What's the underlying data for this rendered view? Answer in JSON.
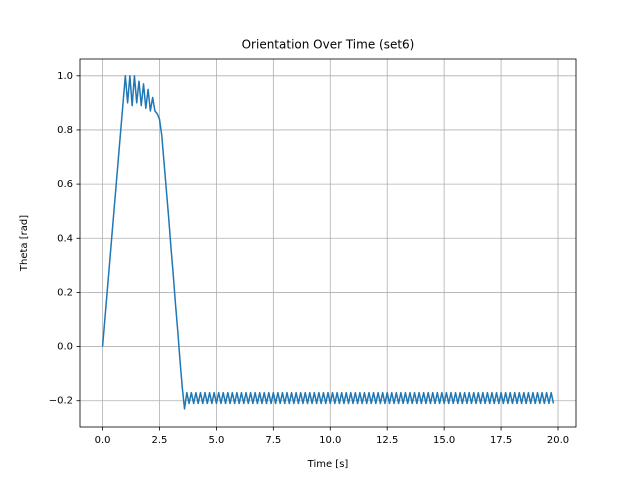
{
  "chart_data": {
    "type": "line",
    "title": "Orientation Over Time (set6)",
    "x_label": "Time [s]",
    "y_label": "Theta [rad]",
    "grid": true,
    "xlim": [
      -0.99,
      20.79
    ],
    "ylim": [
      -0.297,
      1.062
    ],
    "xticks": [
      {
        "value": 0,
        "label": "0.0"
      },
      {
        "value": 2.5,
        "label": "2.5"
      },
      {
        "value": 5,
        "label": "5.0"
      },
      {
        "value": 7.5,
        "label": "7.5"
      },
      {
        "value": 10,
        "label": "10.0"
      },
      {
        "value": 12.5,
        "label": "12.5"
      },
      {
        "value": 15,
        "label": "15.0"
      },
      {
        "value": 17.5,
        "label": "17.5"
      },
      {
        "value": 20,
        "label": "20.0"
      }
    ],
    "yticks": [
      {
        "value": -0.2,
        "label": "−0.2"
      },
      {
        "value": 0,
        "label": "0.0"
      },
      {
        "value": 0.2,
        "label": "0.2"
      },
      {
        "value": 0.4,
        "label": "0.4"
      },
      {
        "value": 0.6,
        "label": "0.6"
      },
      {
        "value": 0.8,
        "label": "0.8"
      },
      {
        "value": 1.0,
        "label": "1.0"
      }
    ],
    "x": [
      0,
      0.1,
      0.2,
      0.3,
      0.4,
      0.5,
      0.6,
      0.7,
      0.8,
      0.9,
      1.0,
      1.1,
      1.2,
      1.3,
      1.4,
      1.5,
      1.6,
      1.7,
      1.8,
      1.9,
      2.0,
      2.1,
      2.2,
      2.3,
      2.4,
      2.5,
      2.6,
      2.7,
      2.8,
      2.9,
      3.0,
      3.1,
      3.2,
      3.3,
      3.4,
      3.5,
      3.6,
      3.7,
      3.8,
      3.9,
      4.0,
      4.1,
      4.2,
      4.3,
      4.4,
      4.5,
      4.6,
      4.7,
      4.8,
      4.9,
      5.0,
      5.1,
      5.2,
      5.3,
      5.4,
      5.5,
      5.6,
      5.7,
      5.8,
      5.9,
      6.0,
      6.1,
      6.2,
      6.3,
      6.4,
      6.5,
      6.6,
      6.7,
      6.8,
      6.9,
      7.0,
      7.1,
      7.2,
      7.3,
      7.4,
      7.5,
      7.6,
      7.7,
      7.8,
      7.9,
      8.0,
      8.1,
      8.2,
      8.3,
      8.4,
      8.5,
      8.6,
      8.7,
      8.8,
      8.9,
      9.0,
      9.1,
      9.2,
      9.3,
      9.4,
      9.5,
      9.6,
      9.7,
      9.8,
      9.9,
      10.0,
      10.1,
      10.2,
      10.3,
      10.4,
      10.5,
      10.6,
      10.7,
      10.8,
      10.9,
      11.0,
      11.1,
      11.2,
      11.3,
      11.4,
      11.5,
      11.6,
      11.7,
      11.8,
      11.9,
      12.0,
      12.1,
      12.2,
      12.3,
      12.4,
      12.5,
      12.6,
      12.7,
      12.8,
      12.9,
      13.0,
      13.1,
      13.2,
      13.3,
      13.4,
      13.5,
      13.6,
      13.7,
      13.8,
      13.9,
      14.0,
      14.1,
      14.2,
      14.3,
      14.4,
      14.5,
      14.6,
      14.7,
      14.8,
      14.9,
      15.0,
      15.1,
      15.2,
      15.3,
      15.4,
      15.5,
      15.6,
      15.7,
      15.8,
      15.9,
      16.0,
      16.1,
      16.2,
      16.3,
      16.4,
      16.5,
      16.6,
      16.7,
      16.8,
      16.9,
      17.0,
      17.1,
      17.2,
      17.3,
      17.4,
      17.5,
      17.6,
      17.7,
      17.8,
      17.9,
      18.0,
      18.1,
      18.2,
      18.3,
      18.4,
      18.5,
      18.6,
      18.7,
      18.8,
      18.9,
      19.0,
      19.1,
      19.2,
      19.3,
      19.4,
      19.5,
      19.6,
      19.7,
      19.8
    ],
    "series": [
      {
        "color": "#1f77b4",
        "values": [
          0,
          0.1,
          0.2,
          0.3,
          0.4,
          0.5,
          0.6,
          0.7,
          0.8,
          0.9,
          1.0,
          0.9,
          1.0,
          0.89,
          1.0,
          0.9,
          0.98,
          0.89,
          0.97,
          0.88,
          0.95,
          0.87,
          0.92,
          0.87,
          0.86,
          0.84,
          0.78,
          0.68,
          0.58,
          0.48,
          0.37,
          0.27,
          0.16,
          0.06,
          -0.05,
          -0.15,
          -0.23,
          -0.17,
          -0.21,
          -0.17,
          -0.21,
          -0.17,
          -0.21,
          -0.17,
          -0.21,
          -0.17,
          -0.21,
          -0.17,
          -0.21,
          -0.17,
          -0.21,
          -0.17,
          -0.21,
          -0.17,
          -0.21,
          -0.17,
          -0.21,
          -0.17,
          -0.21,
          -0.17,
          -0.21,
          -0.17,
          -0.21,
          -0.17,
          -0.21,
          -0.17,
          -0.21,
          -0.17,
          -0.21,
          -0.17,
          -0.21,
          -0.17,
          -0.21,
          -0.17,
          -0.21,
          -0.17,
          -0.21,
          -0.17,
          -0.21,
          -0.17,
          -0.21,
          -0.17,
          -0.21,
          -0.17,
          -0.21,
          -0.17,
          -0.21,
          -0.17,
          -0.21,
          -0.17,
          -0.21,
          -0.17,
          -0.21,
          -0.17,
          -0.21,
          -0.17,
          -0.21,
          -0.17,
          -0.21,
          -0.17,
          -0.21,
          -0.17,
          -0.21,
          -0.17,
          -0.21,
          -0.17,
          -0.21,
          -0.17,
          -0.21,
          -0.17,
          -0.21,
          -0.17,
          -0.21,
          -0.17,
          -0.21,
          -0.17,
          -0.21,
          -0.17,
          -0.21,
          -0.17,
          -0.21,
          -0.17,
          -0.21,
          -0.17,
          -0.21,
          -0.17,
          -0.21,
          -0.17,
          -0.21,
          -0.17,
          -0.21,
          -0.17,
          -0.21,
          -0.17,
          -0.21,
          -0.17,
          -0.21,
          -0.17,
          -0.21,
          -0.17,
          -0.21,
          -0.17,
          -0.21,
          -0.17,
          -0.21,
          -0.17,
          -0.21,
          -0.17,
          -0.21,
          -0.17,
          -0.21,
          -0.17,
          -0.21,
          -0.17,
          -0.21,
          -0.17,
          -0.21,
          -0.17,
          -0.21,
          -0.17,
          -0.21,
          -0.17,
          -0.21,
          -0.17,
          -0.21,
          -0.17,
          -0.21,
          -0.17,
          -0.21,
          -0.17,
          -0.21,
          -0.17,
          -0.21,
          -0.17,
          -0.21,
          -0.17,
          -0.21,
          -0.17,
          -0.21,
          -0.17,
          -0.21,
          -0.17,
          -0.21,
          -0.17,
          -0.21,
          -0.17,
          -0.21,
          -0.17,
          -0.21,
          -0.17,
          -0.21,
          -0.17,
          -0.21,
          -0.17,
          -0.21,
          -0.17,
          -0.21,
          -0.17,
          -0.21
        ]
      }
    ]
  }
}
